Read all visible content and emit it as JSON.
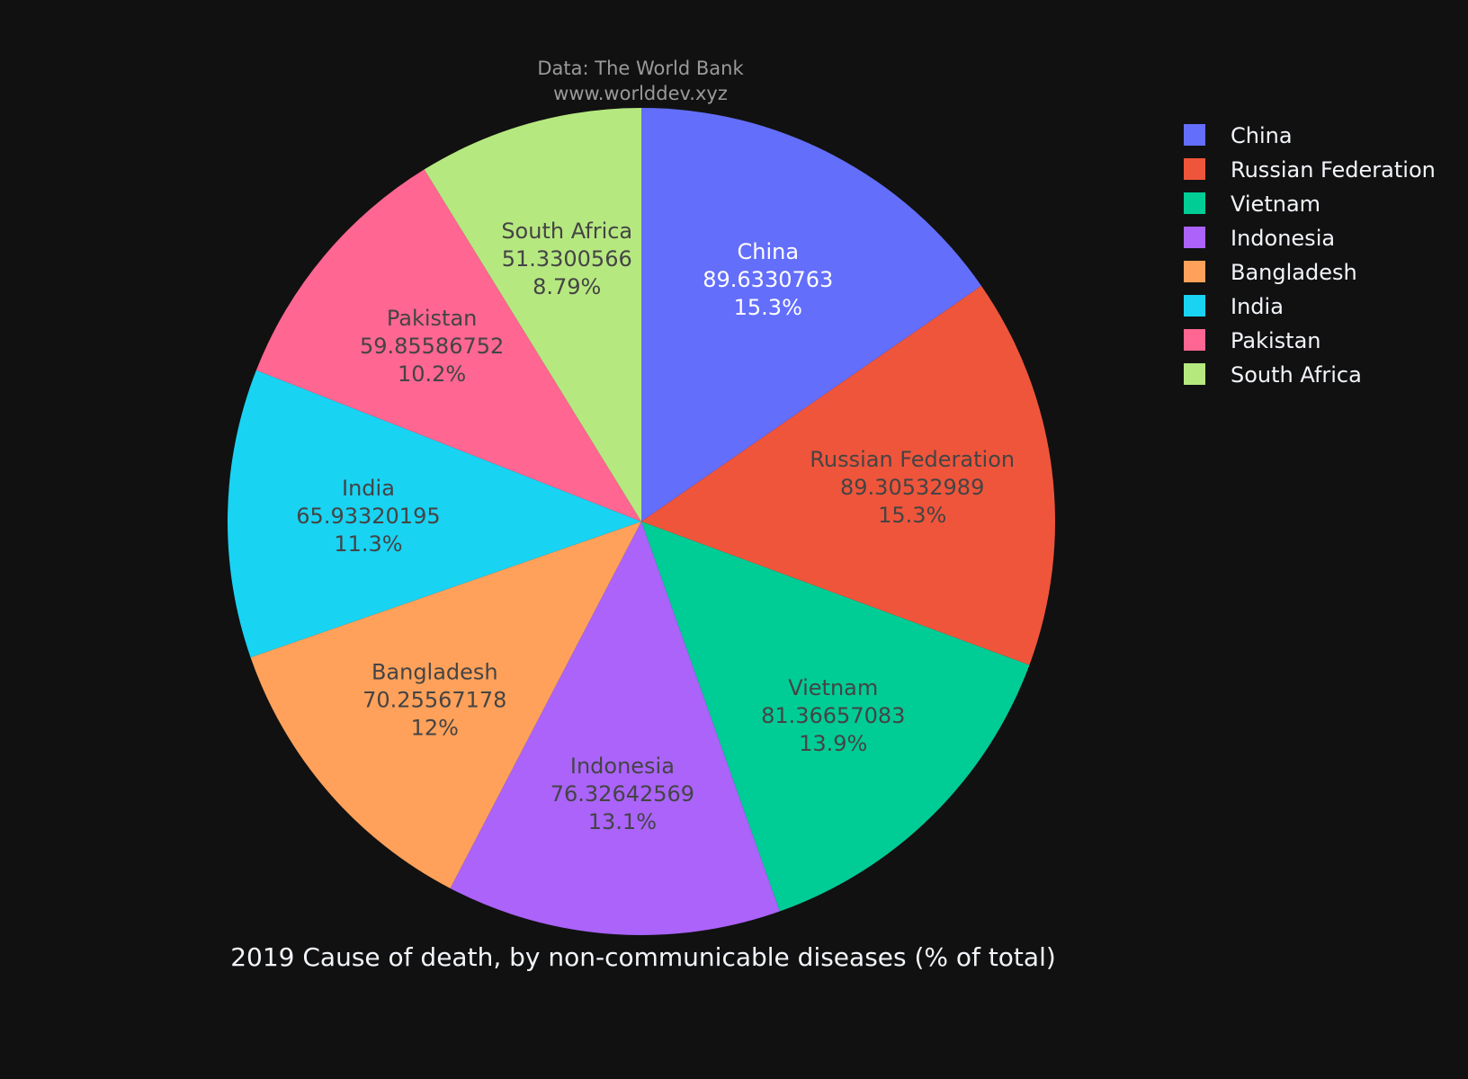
{
  "source": {
    "line1": "Data: The World Bank",
    "line2": "www.worlddev.xyz"
  },
  "colors": {
    "background": "#111111",
    "label_light": "#ffffff",
    "label_dark": "#444444"
  },
  "chart_data": {
    "type": "pie",
    "title": "2019 Cause of death, by non-communicable diseases (% of total)",
    "slices": [
      {
        "label": "China",
        "value": 89.6330763,
        "value_text": "89.6330763",
        "percent_text": "15.3%",
        "color": "#636efa"
      },
      {
        "label": "Russian Federation",
        "value": 89.30532989,
        "value_text": "89.30532989",
        "percent_text": "15.3%",
        "color": "#ef553b"
      },
      {
        "label": "Vietnam",
        "value": 81.36657083,
        "value_text": "81.36657083",
        "percent_text": "13.9%",
        "color": "#00cc96"
      },
      {
        "label": "Indonesia",
        "value": 76.32642569,
        "value_text": "76.32642569",
        "percent_text": "13.1%",
        "color": "#ab63fa"
      },
      {
        "label": "Bangladesh",
        "value": 70.25567178,
        "value_text": "70.25567178",
        "percent_text": "12%",
        "color": "#ffa15a"
      },
      {
        "label": "India",
        "value": 65.93320195,
        "value_text": "65.93320195",
        "percent_text": "11.3%",
        "color": "#19d3f3"
      },
      {
        "label": "Pakistan",
        "value": 59.85586752,
        "value_text": "59.85586752",
        "percent_text": "10.2%",
        "color": "#ff6692"
      },
      {
        "label": "South Africa",
        "value": 51.3300566,
        "value_text": "51.3300566",
        "percent_text": "8.79%",
        "color": "#b6e880"
      }
    ],
    "legend": [
      "China",
      "Russian Federation",
      "Vietnam",
      "Indonesia",
      "Bangladesh",
      "India",
      "Pakistan",
      "South Africa"
    ],
    "legend_position": "top-right"
  }
}
